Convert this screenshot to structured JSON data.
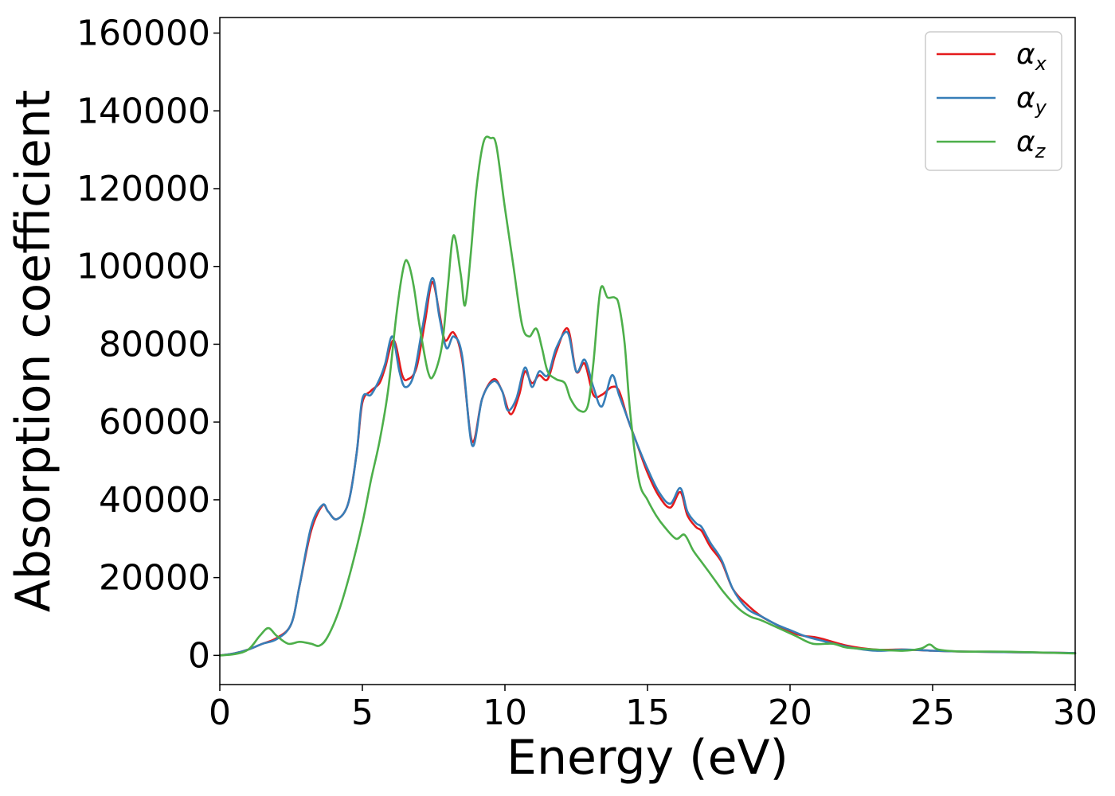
{
  "chart_data": {
    "type": "line",
    "xlabel": "Energy (eV)",
    "ylabel": "Absorption coefficient",
    "xlim": [
      0,
      30
    ],
    "ylim": [
      -7500,
      164000
    ],
    "xticks": [
      0,
      5,
      10,
      15,
      20,
      25,
      30
    ],
    "xtick_labels": [
      "0",
      "5",
      "10",
      "15",
      "20",
      "25",
      "30"
    ],
    "yticks": [
      0,
      20000,
      40000,
      60000,
      80000,
      100000,
      120000,
      140000,
      160000
    ],
    "ytick_labels": [
      "0",
      "20000",
      "40000",
      "60000",
      "80000",
      "100000",
      "120000",
      "140000",
      "160000"
    ],
    "grid": false,
    "legend_position": "top-right",
    "series": [
      {
        "name": "α",
        "subscript": "x",
        "color": "#e41a1c",
        "x": [
          0,
          0.5,
          1.0,
          1.5,
          2.0,
          2.5,
          2.8,
          3.2,
          3.6,
          3.8,
          4.1,
          4.5,
          4.8,
          5.0,
          5.3,
          5.6,
          5.8,
          6.1,
          6.4,
          6.6,
          6.9,
          7.2,
          7.45,
          7.7,
          7.9,
          8.2,
          8.5,
          8.85,
          9.2,
          9.6,
          9.9,
          10.2,
          10.5,
          10.7,
          10.95,
          11.2,
          11.5,
          11.8,
          12.2,
          12.5,
          12.8,
          13.1,
          13.4,
          13.75,
          14.0,
          14.3,
          14.6,
          15.0,
          15.4,
          15.8,
          16.15,
          16.4,
          16.7,
          16.9,
          17.2,
          17.6,
          18.0,
          18.5,
          19.0,
          19.5,
          20.0,
          20.5,
          21.0,
          22.0,
          23.0,
          24.0,
          25.0,
          26.0,
          27.0,
          28.0,
          29.0,
          30.0
        ],
        "y": [
          0,
          500,
          1500,
          3000,
          4500,
          8000,
          18000,
          32000,
          38500,
          37000,
          35000,
          39000,
          52000,
          65000,
          68000,
          70000,
          74000,
          81000,
          72000,
          71000,
          74000,
          86000,
          96000,
          88000,
          81000,
          83000,
          76000,
          55000,
          66000,
          71000,
          68000,
          62000,
          67000,
          73000,
          70000,
          72000,
          71000,
          78000,
          84000,
          73000,
          75000,
          67000,
          67000,
          69000,
          68000,
          61000,
          55000,
          47000,
          41000,
          38000,
          42000,
          36000,
          33000,
          32000,
          28000,
          24000,
          17000,
          13000,
          10000,
          8000,
          6000,
          5000,
          4500,
          2500,
          1500,
          1500,
          1200,
          1000,
          900,
          800,
          700,
          600
        ]
      },
      {
        "name": "α",
        "subscript": "y",
        "color": "#377eb8",
        "x": [
          0,
          0.5,
          1.0,
          1.5,
          2.0,
          2.5,
          2.8,
          3.2,
          3.6,
          3.8,
          4.1,
          4.5,
          4.8,
          5.0,
          5.3,
          5.6,
          5.8,
          6.05,
          6.3,
          6.5,
          6.8,
          7.1,
          7.45,
          7.7,
          7.95,
          8.2,
          8.5,
          8.85,
          9.2,
          9.6,
          9.9,
          10.1,
          10.4,
          10.7,
          10.95,
          11.2,
          11.5,
          11.8,
          12.2,
          12.5,
          12.8,
          13.1,
          13.4,
          13.75,
          14.0,
          14.3,
          14.6,
          15.0,
          15.4,
          15.8,
          16.15,
          16.4,
          16.7,
          16.9,
          17.2,
          17.6,
          18.0,
          18.5,
          19.0,
          19.5,
          20.0,
          20.5,
          21.0,
          22.0,
          23.0,
          24.0,
          25.0,
          26.0,
          27.0,
          28.0,
          29.0,
          30.0
        ],
        "y": [
          0,
          500,
          1500,
          3000,
          4200,
          8000,
          18000,
          33000,
          38700,
          37000,
          35000,
          39000,
          52000,
          66000,
          67000,
          71000,
          75000,
          82000,
          73000,
          69000,
          72000,
          84000,
          97000,
          87000,
          79000,
          82000,
          77000,
          54000,
          66000,
          70500,
          68000,
          63000,
          66000,
          74000,
          69000,
          73000,
          72000,
          79000,
          83000,
          73000,
          76000,
          69000,
          64000,
          72000,
          67000,
          61000,
          55000,
          48000,
          42000,
          39000,
          43000,
          37000,
          34000,
          33000,
          29000,
          24500,
          17000,
          12000,
          10000,
          8000,
          6500,
          5000,
          4000,
          2200,
          1200,
          1500,
          1200,
          1000,
          900,
          800,
          700,
          600
        ]
      },
      {
        "name": "α",
        "subscript": "z",
        "color": "#4daf4a",
        "x": [
          0,
          0.5,
          1.0,
          1.4,
          1.7,
          2.0,
          2.4,
          2.8,
          3.2,
          3.5,
          3.8,
          4.2,
          4.6,
          5.0,
          5.3,
          5.6,
          5.9,
          6.2,
          6.45,
          6.6,
          6.8,
          7.0,
          7.3,
          7.5,
          7.8,
          8.0,
          8.2,
          8.45,
          8.6,
          8.8,
          9.0,
          9.25,
          9.5,
          9.7,
          10.0,
          10.3,
          10.6,
          10.85,
          11.1,
          11.3,
          11.5,
          11.8,
          12.1,
          12.3,
          12.6,
          12.9,
          13.1,
          13.35,
          13.6,
          13.85,
          14.0,
          14.2,
          14.4,
          14.7,
          15.0,
          15.3,
          15.6,
          16.0,
          16.3,
          16.6,
          16.9,
          17.3,
          17.7,
          18.2,
          18.6,
          19.0,
          19.6,
          20.2,
          20.8,
          21.5,
          22.0,
          23.0,
          24.0,
          24.6,
          24.9,
          25.2,
          26.0,
          27.0,
          28.0,
          29.0,
          30.0
        ],
        "y": [
          0,
          300,
          1500,
          5000,
          7000,
          5000,
          3000,
          3500,
          3000,
          2500,
          5000,
          12000,
          22000,
          34000,
          45000,
          55000,
          68000,
          88000,
          100000,
          101000,
          95000,
          85000,
          73000,
          72000,
          80000,
          95000,
          108000,
          98000,
          90000,
          103000,
          120000,
          132000,
          133000,
          131000,
          115000,
          100000,
          85000,
          82000,
          84000,
          79000,
          73000,
          71000,
          70000,
          66000,
          63000,
          64000,
          75000,
          94000,
          92000,
          92000,
          90000,
          80000,
          62000,
          45000,
          40000,
          36000,
          33000,
          30000,
          31000,
          27000,
          24000,
          20000,
          16000,
          12000,
          10000,
          9000,
          7000,
          5000,
          3000,
          3000,
          2000,
          1500,
          1200,
          1800,
          2800,
          1500,
          1000,
          1000,
          900,
          700,
          500
        ]
      }
    ]
  }
}
